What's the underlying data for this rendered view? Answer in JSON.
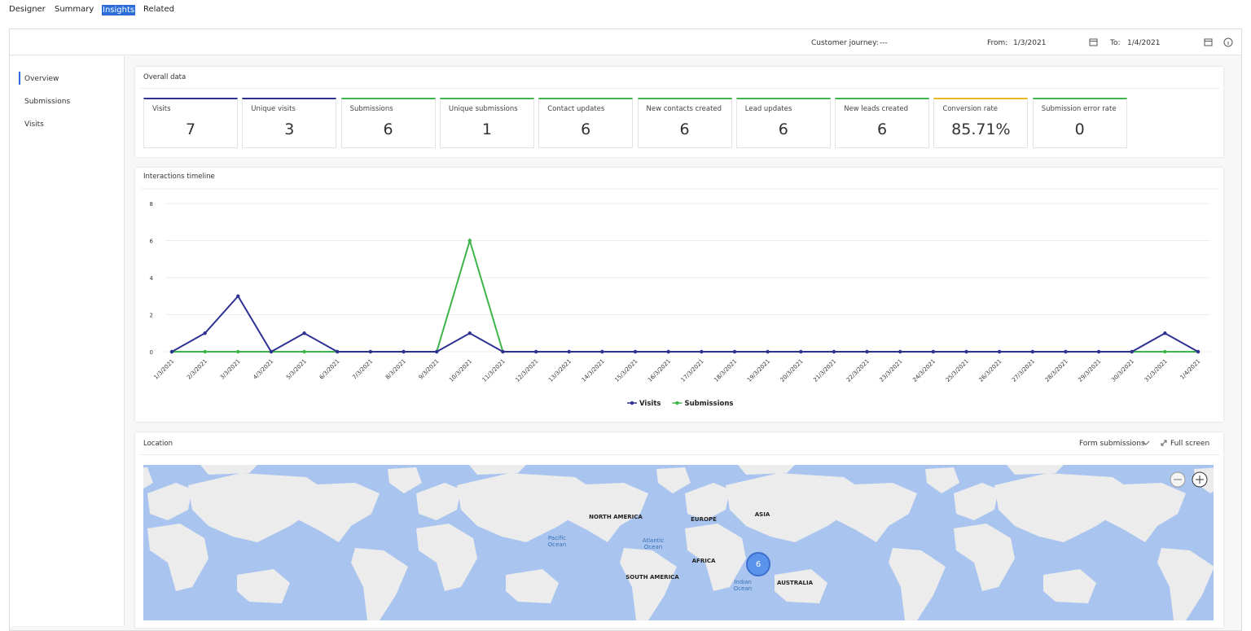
{
  "tabs": [
    "Designer",
    "Summary",
    "Insights",
    "Related"
  ],
  "header": {
    "customer_journey_label": "Customer journey:",
    "customer_journey_value": "---",
    "from_label": "From:",
    "from_value": "1/3/2021",
    "to_label": "To:",
    "to_value": "1/4/2021"
  },
  "side_nav": [
    "Overview",
    "Submissions",
    "Visits"
  ],
  "overall_data": {
    "title": "Overall data",
    "cards": [
      {
        "label": "Visits",
        "value": 7,
        "color": "#2e3192"
      },
      {
        "label": "Unique visits",
        "value": 3,
        "color": "#2e3192"
      },
      {
        "label": "Submissions",
        "value": 6,
        "color": "#3cb54a"
      },
      {
        "label": "Unique submissions",
        "value": 1,
        "color": "#3cb54a"
      },
      {
        "label": "Contact updates",
        "value": 6,
        "color": "#3cb54a"
      },
      {
        "label": "New contacts created",
        "value": 6,
        "color": "#3cb54a"
      },
      {
        "label": "Lead updates",
        "value": 6,
        "color": "#3cb54a"
      },
      {
        "label": "New leads created",
        "value": 6,
        "color": "#3cb54a"
      },
      {
        "label": "Conversion rate",
        "value": 85.71,
        "value_label": "85.71%",
        "color": "#e8b820"
      },
      {
        "label": "Submission error rate",
        "value": 0,
        "color": "#3cb54a"
      }
    ]
  },
  "chart_data": {
    "type": "line",
    "title": "Interactions timeline",
    "categories": [
      "1/3/2021",
      "2/3/2021",
      "3/3/2021",
      "4/3/2021",
      "5/3/2021",
      "6/3/2021",
      "7/3/2021",
      "8/3/2021",
      "9/3/2021",
      "10/3/2021",
      "11/3/2021",
      "12/3/2021",
      "13/3/2021",
      "14/3/2021",
      "15/3/2021",
      "16/3/2021",
      "17/3/2021",
      "18/3/2021",
      "19/3/2021",
      "20/3/2021",
      "21/3/2021",
      "22/3/2021",
      "23/3/2021",
      "24/3/2021",
      "25/3/2021",
      "26/3/2021",
      "27/3/2021",
      "28/3/2021",
      "29/3/2021",
      "30/3/2021",
      "31/3/2021",
      "1/4/2021"
    ],
    "series": [
      {
        "name": "Visits",
        "color": "#2e3192",
        "values": [
          0,
          1,
          3,
          0,
          1,
          0,
          0,
          0,
          0,
          1,
          0,
          0,
          0,
          0,
          0,
          0,
          0,
          0,
          0,
          0,
          0,
          0,
          0,
          0,
          0,
          0,
          0,
          0,
          0,
          0,
          1,
          0
        ]
      },
      {
        "name": "Submissions",
        "color": "#3cb54a",
        "values": [
          0,
          0,
          0,
          0,
          0,
          0,
          0,
          0,
          0,
          6,
          0,
          0,
          0,
          0,
          0,
          0,
          0,
          0,
          0,
          0,
          0,
          0,
          0,
          0,
          0,
          0,
          0,
          0,
          0,
          0,
          0,
          0
        ]
      }
    ],
    "ylim": [
      0,
      8
    ],
    "yticks": [
      0,
      2,
      4,
      6,
      8
    ],
    "grid": true,
    "legend": "bottom"
  },
  "location": {
    "title": "Location",
    "dropdown": "Form submissions",
    "full_screen": "Full screen",
    "map_labels": [
      "NORTH AMERICA",
      "EUROPE",
      "ASIA",
      "AFRICA",
      "SOUTH AMERICA",
      "AUSTRALIA",
      "Pacific Ocean",
      "Atlantic Ocean",
      "Indian Ocean"
    ],
    "bubble": 6
  }
}
